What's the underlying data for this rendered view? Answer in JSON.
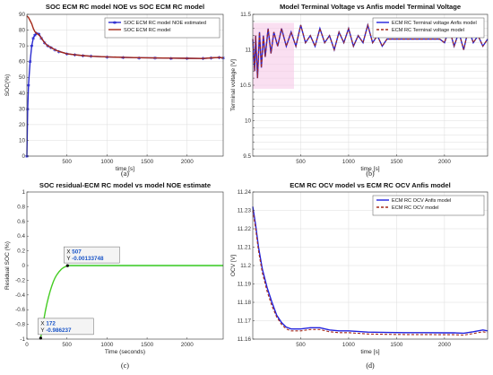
{
  "chart_data": [
    {
      "type": "line",
      "caption": "(a)",
      "title": "SOC ECM RC model NOE vs SOC ECM RC model",
      "xlabel": "time [s]",
      "ylabel": "SOC(%)",
      "xlim": [
        0,
        2450
      ],
      "ylim": [
        0,
        90
      ],
      "xticks": [
        500,
        1000,
        1500,
        2000
      ],
      "yticks": [
        0,
        10,
        20,
        30,
        40,
        50,
        60,
        70,
        80,
        90
      ],
      "xtick_labels": [
        "500",
        "1000",
        "1500",
        "2000"
      ],
      "ytick_labels": [
        "0",
        "10",
        "20",
        "30",
        "40",
        "50",
        "60",
        "70",
        "80",
        "90"
      ],
      "grid": true,
      "legend_position": "top-right",
      "series": [
        {
          "name": "SOC ECM RC model NOE estimated",
          "color": "#2a2ad0",
          "style": "line-markers",
          "x": [
            0,
            10,
            20,
            40,
            60,
            80,
            100,
            120,
            150,
            180,
            220,
            260,
            300,
            350,
            400,
            500,
            600,
            700,
            800,
            1000,
            1200,
            1400,
            1600,
            1800,
            2000,
            2200,
            2300,
            2400,
            2450
          ],
          "y": [
            0,
            30,
            45,
            60,
            70,
            75,
            77,
            78,
            77.5,
            75,
            72,
            70,
            69,
            67.5,
            66.5,
            65,
            64.3,
            63.8,
            63.4,
            63,
            62.7,
            62.5,
            62.3,
            62.2,
            62.1,
            62,
            62.4,
            62.6,
            62.4
          ]
        },
        {
          "name": "SOC ECM RC model",
          "color": "#a52a1a",
          "style": "line",
          "x": [
            0,
            20,
            40,
            60,
            80,
            100,
            120,
            150,
            180,
            220,
            260,
            300,
            350,
            400,
            500,
            600,
            700,
            800,
            1000,
            1200,
            1400,
            1600,
            1800,
            2000,
            2200,
            2300,
            2400,
            2450
          ],
          "y": [
            89,
            88,
            86,
            84,
            81,
            79,
            78,
            77,
            75,
            72,
            70,
            69,
            67.5,
            66.5,
            65,
            64.3,
            63.8,
            63.4,
            63,
            62.7,
            62.5,
            62.3,
            62.2,
            62.1,
            62,
            62.4,
            62.6,
            62.4
          ]
        }
      ]
    },
    {
      "type": "line",
      "caption": "(b)",
      "title": "Model Terminal Voltage vs Anfis model Terminal Voltage",
      "xlabel": "time [s]",
      "ylabel": "Terminal voltage [V]",
      "xlim": [
        0,
        2450
      ],
      "ylim": [
        9.5,
        11.5
      ],
      "xticks": [
        500,
        1000,
        1500,
        2000
      ],
      "yticks": [
        9.5,
        9.6,
        9.7,
        9.8,
        9.9,
        10,
        10.1,
        10.2,
        10.3,
        10.4,
        10.5,
        10.6,
        10.7,
        10.8,
        10.9,
        11,
        11.1,
        11.2,
        11.3,
        11.4,
        11.5
      ],
      "xtick_labels": [
        "500",
        "1000",
        "1500",
        "2000"
      ],
      "ytick_labels": [
        "9.5",
        "",
        "",
        "",
        "",
        "10",
        "",
        "",
        "",
        "",
        "10.5",
        "",
        "",
        "",
        "",
        "11",
        "",
        "",
        "",
        "",
        "11.5"
      ],
      "grid": true,
      "legend_position": "top-right",
      "series": [
        {
          "name": "ECM RC Terminal voltage Anfis model",
          "color": "#2222dd",
          "style": "line",
          "x": [
            0,
            20,
            30,
            50,
            70,
            90,
            110,
            130,
            160,
            190,
            220,
            260,
            300,
            350,
            400,
            450,
            500,
            550,
            600,
            650,
            700,
            750,
            800,
            850,
            900,
            950,
            1000,
            1050,
            1100,
            1150,
            1200,
            1250,
            1300,
            1350,
            1400,
            1500,
            1600,
            1700,
            1800,
            1900,
            1950,
            2000,
            2050,
            2100,
            2150,
            2200,
            2250,
            2300,
            2350,
            2400,
            2450
          ],
          "y": [
            11.15,
            10.7,
            11.2,
            10.6,
            11.25,
            10.75,
            11.2,
            10.9,
            11.3,
            10.95,
            11.25,
            11.05,
            11.3,
            11.05,
            11.25,
            11.05,
            11.35,
            11.1,
            11.2,
            11.05,
            11.3,
            11.1,
            11.2,
            11.0,
            11.25,
            11.1,
            11.3,
            11.05,
            11.2,
            11.1,
            11.35,
            11.1,
            11.2,
            11.05,
            11.15,
            11.15,
            11.15,
            11.15,
            11.15,
            11.15,
            11.15,
            11.1,
            11.3,
            11.05,
            11.25,
            11.0,
            11.3,
            11.1,
            11.2,
            11.05,
            11.15
          ]
        },
        {
          "name": "ECM RC Terminal voltage model",
          "color": "#a52a1a",
          "style": "dashed",
          "x": [
            0,
            20,
            30,
            50,
            70,
            90,
            110,
            130,
            160,
            190,
            220,
            260,
            300,
            350,
            400,
            450,
            500,
            550,
            600,
            650,
            700,
            750,
            800,
            850,
            900,
            950,
            1000,
            1050,
            1100,
            1150,
            1200,
            1250,
            1300,
            1350,
            1400,
            1500,
            1600,
            1700,
            1800,
            1900,
            1950,
            2000,
            2050,
            2100,
            2150,
            2200,
            2250,
            2300,
            2350,
            2400,
            2450
          ],
          "y": [
            11.15,
            10.7,
            11.2,
            10.6,
            11.25,
            10.75,
            11.2,
            10.9,
            11.3,
            10.95,
            11.25,
            11.05,
            11.3,
            11.05,
            11.25,
            11.05,
            11.35,
            11.1,
            11.2,
            11.05,
            11.3,
            11.1,
            11.2,
            11.0,
            11.25,
            11.1,
            11.3,
            11.05,
            11.2,
            11.1,
            11.35,
            11.1,
            11.2,
            11.05,
            11.15,
            11.15,
            11.15,
            11.15,
            11.15,
            11.15,
            11.15,
            11.1,
            11.3,
            11.05,
            11.25,
            11.0,
            11.3,
            11.1,
            11.2,
            11.05,
            11.15
          ]
        }
      ]
    },
    {
      "type": "line",
      "caption": "(c)",
      "title": "SOC residual-ECM RC model vs model NOE estimate",
      "xlabel": "Time (seconds)",
      "ylabel": "Residual SOC (%)",
      "xlim": [
        0,
        2450
      ],
      "ylim": [
        -1,
        1
      ],
      "xticks": [
        0,
        500,
        1000,
        1500,
        2000
      ],
      "yticks": [
        -1,
        -0.8,
        -0.6,
        -0.4,
        -0.2,
        0,
        0.2,
        0.4,
        0.6,
        0.8,
        1
      ],
      "xtick_labels": [
        "0",
        "500",
        "1000",
        "1500",
        "2000"
      ],
      "ytick_labels": [
        "-1",
        "-0.8",
        "-0.6",
        "-0.4",
        "-0.2",
        "0",
        "0.2",
        "0.4",
        "0.6",
        "0.8",
        "1"
      ],
      "grid": false,
      "series": [
        {
          "color": "#44cc22",
          "style": "line",
          "x": [
            172,
            190,
            210,
            230,
            250,
            270,
            290,
            310,
            330,
            350,
            370,
            400,
            430,
            460,
            507,
            550,
            600,
            700,
            800,
            1000,
            1500,
            2000,
            2450
          ],
          "y": [
            -0.986237,
            -0.86,
            -0.74,
            -0.62,
            -0.52,
            -0.43,
            -0.35,
            -0.28,
            -0.22,
            -0.17,
            -0.13,
            -0.085,
            -0.05,
            -0.025,
            -0.00133748,
            0,
            0,
            0,
            0,
            0,
            0,
            0,
            0
          ]
        }
      ],
      "datatips": [
        {
          "x_label": "X",
          "x_value": "507",
          "y_label": "Y",
          "y_value": "-0.00133748",
          "x": 507,
          "y": -0.00133748
        },
        {
          "x_label": "X",
          "x_value": "172",
          "y_label": "Y",
          "y_value": "-0.986237",
          "x": 172,
          "y": -0.986237
        }
      ]
    },
    {
      "type": "line",
      "caption": "(d)",
      "title": "ECM RC OCV model vs ECM RC OCV Anfis model",
      "xlabel": "time [s]",
      "ylabel": "OCV [V]",
      "xlim": [
        0,
        2450
      ],
      "ylim": [
        11.16,
        11.24
      ],
      "xticks": [
        500,
        1000,
        1500,
        2000
      ],
      "yticks": [
        11.16,
        11.17,
        11.18,
        11.19,
        11.2,
        11.21,
        11.22,
        11.23,
        11.24
      ],
      "xtick_labels": [
        "500",
        "1000",
        "1500",
        "2000"
      ],
      "ytick_labels": [
        "11.16",
        "11.17",
        "11.18",
        "11.19",
        "11.2",
        "11.21",
        "11.22",
        "11.23",
        "11.24"
      ],
      "grid": true,
      "legend_position": "top-right",
      "series": [
        {
          "name": "ECM RC OCV Anfis model",
          "color": "#2222dd",
          "style": "line",
          "x": [
            0,
            30,
            60,
            100,
            150,
            200,
            250,
            300,
            350,
            400,
            500,
            600,
            700,
            800,
            900,
            1000,
            1200,
            1400,
            1600,
            1800,
            2000,
            2100,
            2200,
            2300,
            2400,
            2450
          ],
          "y": [
            11.232,
            11.222,
            11.21,
            11.198,
            11.188,
            11.18,
            11.173,
            11.169,
            11.1665,
            11.1655,
            11.1655,
            11.1662,
            11.1662,
            11.165,
            11.1645,
            11.1645,
            11.1638,
            11.1636,
            11.1635,
            11.1635,
            11.1634,
            11.1634,
            11.1632,
            11.164,
            11.165,
            11.1645
          ]
        },
        {
          "name": "ECM RC OCV model",
          "color": "#a52a1a",
          "style": "dashed",
          "x": [
            0,
            30,
            60,
            100,
            150,
            200,
            250,
            300,
            350,
            400,
            500,
            600,
            700,
            800,
            900,
            1000,
            1200,
            1400,
            1600,
            1800,
            2000,
            2100,
            2200,
            2300,
            2400,
            2450
          ],
          "y": [
            11.23,
            11.22,
            11.208,
            11.196,
            11.186,
            11.178,
            11.172,
            11.168,
            11.1655,
            11.1645,
            11.1645,
            11.1652,
            11.1652,
            11.164,
            11.1635,
            11.1635,
            11.1628,
            11.1626,
            11.1625,
            11.1625,
            11.1624,
            11.1624,
            11.1622,
            11.163,
            11.164,
            11.1635
          ]
        }
      ]
    }
  ]
}
